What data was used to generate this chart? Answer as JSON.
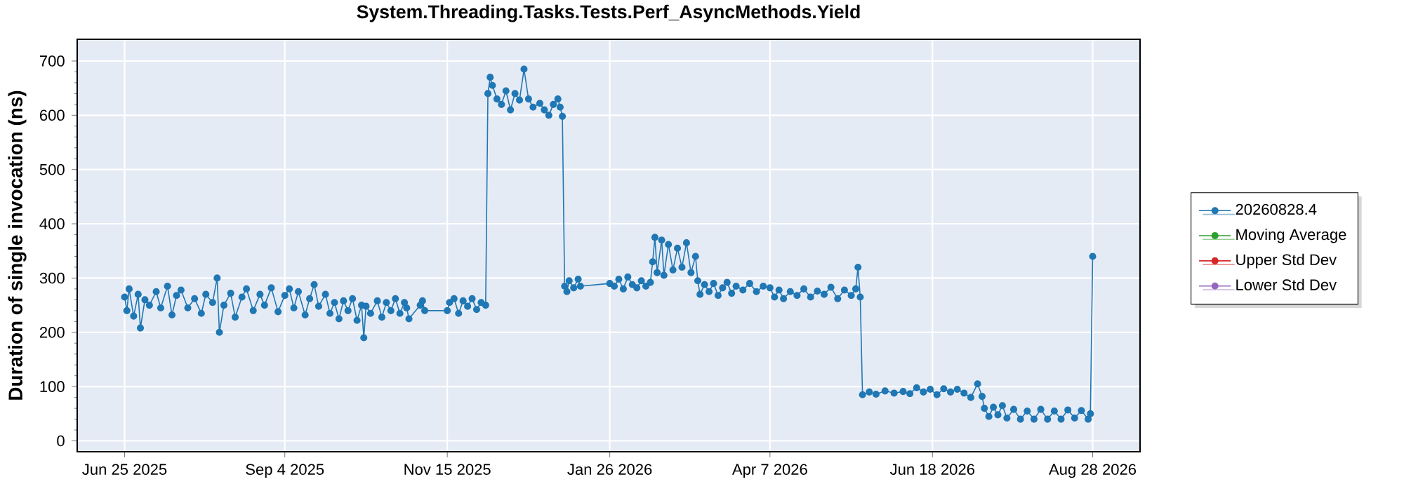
{
  "chart_data": {
    "type": "line",
    "title": "System.Threading.Tasks.Tests.Perf_AsyncMethods.Yield",
    "ylabel": "Duration of single invocation (ns)",
    "x": [
      "2025-06-25",
      "2025-06-26",
      "2025-06-27",
      "2025-06-29",
      "2025-07-01",
      "2025-07-02",
      "2025-07-04",
      "2025-07-06",
      "2025-07-09",
      "2025-07-11",
      "2025-07-14",
      "2025-07-16",
      "2025-07-18",
      "2025-07-20",
      "2025-07-23",
      "2025-07-26",
      "2025-07-29",
      "2025-07-31",
      "2025-08-03",
      "2025-08-05",
      "2025-08-06",
      "2025-08-08",
      "2025-08-11",
      "2025-08-13",
      "2025-08-16",
      "2025-08-18",
      "2025-08-21",
      "2025-08-24",
      "2025-08-26",
      "2025-08-29",
      "2025-09-01",
      "2025-09-04",
      "2025-09-06",
      "2025-09-08",
      "2025-09-10",
      "2025-09-13",
      "2025-09-15",
      "2025-09-17",
      "2025-09-19",
      "2025-09-22",
      "2025-09-24",
      "2025-09-26",
      "2025-09-28",
      "2025-09-30",
      "2025-10-02",
      "2025-10-04",
      "2025-10-06",
      "2025-10-08",
      "2025-10-09",
      "2025-10-10",
      "2025-10-12",
      "2025-10-15",
      "2025-10-17",
      "2025-10-19",
      "2025-10-21",
      "2025-10-23",
      "2025-10-25",
      "2025-10-27",
      "2025-10-28",
      "2025-10-29",
      "2025-11-03",
      "2025-11-04",
      "2025-11-05",
      "2025-11-15",
      "2025-11-16",
      "2025-11-18",
      "2025-11-20",
      "2025-11-22",
      "2025-11-24",
      "2025-11-26",
      "2025-11-28",
      "2025-11-30",
      "2025-12-02",
      "2025-12-03",
      "2025-12-04",
      "2025-12-05",
      "2025-12-07",
      "2025-12-09",
      "2025-12-11",
      "2025-12-13",
      "2025-12-15",
      "2025-12-17",
      "2025-12-19",
      "2025-12-21",
      "2025-12-23",
      "2025-12-26",
      "2025-12-28",
      "2025-12-30",
      "2026-01-01",
      "2026-01-03",
      "2026-01-04",
      "2026-01-05",
      "2026-01-06",
      "2026-01-07",
      "2026-01-08",
      "2026-01-10",
      "2026-01-12",
      "2026-01-13",
      "2026-01-26",
      "2026-01-28",
      "2026-01-30",
      "2026-02-01",
      "2026-02-03",
      "2026-02-05",
      "2026-02-07",
      "2026-02-09",
      "2026-02-11",
      "2026-02-13",
      "2026-02-14",
      "2026-02-15",
      "2026-02-16",
      "2026-02-18",
      "2026-02-19",
      "2026-02-21",
      "2026-02-23",
      "2026-02-25",
      "2026-02-27",
      "2026-03-01",
      "2026-03-03",
      "2026-03-05",
      "2026-03-06",
      "2026-03-07",
      "2026-03-09",
      "2026-03-11",
      "2026-03-13",
      "2026-03-15",
      "2026-03-17",
      "2026-03-19",
      "2026-03-21",
      "2026-03-23",
      "2026-03-26",
      "2026-03-29",
      "2026-04-01",
      "2026-04-04",
      "2026-04-07",
      "2026-04-09",
      "2026-04-11",
      "2026-04-13",
      "2026-04-16",
      "2026-04-19",
      "2026-04-22",
      "2026-04-25",
      "2026-04-28",
      "2026-05-01",
      "2026-05-04",
      "2026-05-07",
      "2026-05-10",
      "2026-05-13",
      "2026-05-15",
      "2026-05-16",
      "2026-05-17",
      "2026-05-18",
      "2026-05-21",
      "2026-05-24",
      "2026-05-28",
      "2026-06-01",
      "2026-06-05",
      "2026-06-08",
      "2026-06-11",
      "2026-06-14",
      "2026-06-17",
      "2026-06-20",
      "2026-06-23",
      "2026-06-26",
      "2026-06-29",
      "2026-07-02",
      "2026-07-05",
      "2026-07-08",
      "2026-07-10",
      "2026-07-11",
      "2026-07-13",
      "2026-07-15",
      "2026-07-17",
      "2026-07-19",
      "2026-07-21",
      "2026-07-24",
      "2026-07-27",
      "2026-07-30",
      "2026-08-02",
      "2026-08-05",
      "2026-08-08",
      "2026-08-11",
      "2026-08-14",
      "2026-08-17",
      "2026-08-20",
      "2026-08-23",
      "2026-08-26",
      "2026-08-27",
      "2026-08-28"
    ],
    "series": [
      {
        "name": "20260828.4",
        "color": "#1f77b4",
        "values": [
          265,
          240,
          280,
          230,
          270,
          208,
          260,
          250,
          275,
          245,
          285,
          232,
          268,
          278,
          245,
          262,
          235,
          270,
          255,
          300,
          200,
          250,
          272,
          228,
          265,
          280,
          240,
          270,
          250,
          282,
          238,
          268,
          280,
          245,
          275,
          232,
          262,
          288,
          248,
          270,
          235,
          255,
          225,
          258,
          240,
          262,
          222,
          250,
          190,
          248,
          235,
          258,
          228,
          255,
          240,
          262,
          235,
          255,
          245,
          225,
          250,
          258,
          240,
          240,
          255,
          262,
          235,
          258,
          248,
          262,
          242,
          255,
          250,
          640,
          670,
          655,
          630,
          620,
          645,
          610,
          640,
          628,
          685,
          630,
          615,
          622,
          610,
          600,
          620,
          630,
          615,
          598,
          285,
          275,
          295,
          282,
          298,
          285,
          290,
          285,
          298,
          280,
          302,
          288,
          282,
          295,
          285,
          292,
          330,
          375,
          310,
          370,
          305,
          362,
          315,
          355,
          320,
          365,
          310,
          340,
          295,
          270,
          288,
          275,
          290,
          268,
          282,
          292,
          272,
          285,
          278,
          290,
          275,
          285,
          282,
          265,
          278,
          262,
          275,
          268,
          280,
          265,
          276,
          270,
          283,
          262,
          278,
          268,
          280,
          320,
          265,
          85,
          90,
          86,
          92,
          88,
          91,
          87,
          98,
          90,
          95,
          85,
          96,
          90,
          95,
          88,
          80,
          105,
          82,
          60,
          45,
          62,
          48,
          65,
          42,
          58,
          40,
          55,
          40,
          58,
          40,
          55,
          40,
          57,
          42,
          56,
          40,
          50,
          340
        ]
      },
      {
        "name": "Moving Average",
        "color": "#2ca02c",
        "values": [
          null,
          null,
          null,
          null,
          null,
          null,
          null,
          null,
          null,
          null,
          null,
          null,
          null,
          null,
          null,
          null,
          null,
          null,
          null,
          null,
          null,
          null,
          null,
          null,
          null,
          null,
          null,
          null,
          null,
          null,
          null,
          null,
          null,
          null,
          null,
          null,
          null,
          null,
          null,
          null,
          null,
          null,
          null,
          null,
          null,
          null,
          null,
          null,
          null,
          null,
          null,
          null,
          null,
          null,
          null,
          null,
          null,
          null,
          null,
          null,
          null,
          null,
          null,
          null,
          null,
          null,
          null,
          null,
          null,
          null,
          null,
          null,
          null,
          null,
          null,
          null,
          null,
          null,
          null,
          null,
          null,
          null,
          null,
          null,
          null,
          null,
          null,
          null,
          null,
          null,
          null,
          null,
          null,
          null,
          null,
          null,
          null,
          null,
          null,
          null,
          null,
          null,
          null,
          null,
          null,
          null,
          null,
          null,
          null,
          null,
          null,
          null,
          null,
          null,
          null,
          null,
          null,
          null,
          null,
          null,
          null,
          null,
          null,
          null,
          null,
          null,
          null,
          null,
          null,
          null,
          null,
          null,
          null,
          null,
          null,
          null,
          null,
          null,
          null,
          null,
          null,
          null,
          null,
          null,
          null,
          null,
          null,
          null,
          null,
          null,
          null,
          null,
          null,
          null,
          null,
          null,
          null,
          null,
          null,
          null,
          null,
          null,
          null,
          null,
          null,
          null,
          null,
          null,
          null,
          null,
          null,
          null,
          null,
          null,
          null,
          null,
          null,
          null,
          null,
          null,
          null,
          null,
          null,
          null,
          null,
          null,
          null,
          null,
          null
        ]
      },
      {
        "name": "Upper Std Dev",
        "color": "#d62728",
        "values": [
          null,
          null,
          null,
          null,
          null,
          null,
          null,
          null,
          null,
          null,
          null,
          null,
          null,
          null,
          null,
          null,
          null,
          null,
          null,
          null,
          null,
          null,
          null,
          null,
          null,
          null,
          null,
          null,
          null,
          null,
          null,
          null,
          null,
          null,
          null,
          null,
          null,
          null,
          null,
          null,
          null,
          null,
          null,
          null,
          null,
          null,
          null,
          null,
          null,
          null,
          null,
          null,
          null,
          null,
          null,
          null,
          null,
          null,
          null,
          null,
          null,
          null,
          null,
          null,
          null,
          null,
          null,
          null,
          null,
          null,
          null,
          null,
          null,
          null,
          null,
          null,
          null,
          null,
          null,
          null,
          null,
          null,
          null,
          null,
          null,
          null,
          null,
          null,
          null,
          null,
          null,
          null,
          null,
          null,
          null,
          null,
          null,
          null,
          null,
          null,
          null,
          null,
          null,
          null,
          null,
          null,
          null,
          null,
          null,
          null,
          null,
          null,
          null,
          null,
          null,
          null,
          null,
          null,
          null,
          null,
          null,
          null,
          null,
          null,
          null,
          null,
          null,
          null,
          null,
          null,
          null,
          null,
          null,
          null,
          null,
          null,
          null,
          null,
          null,
          null,
          null,
          null,
          null,
          null,
          null,
          null,
          null,
          null,
          null,
          null,
          null,
          null,
          null,
          null,
          null,
          null,
          null,
          null,
          null,
          null,
          null,
          null,
          null,
          null,
          null,
          null,
          null,
          null,
          null,
          null,
          null,
          null,
          null,
          null,
          null,
          null,
          null,
          null,
          null,
          null,
          null,
          null,
          null,
          null,
          null,
          null,
          null,
          null,
          null
        ]
      },
      {
        "name": "Lower Std Dev",
        "color": "#9467bd",
        "values": [
          null,
          null,
          null,
          null,
          null,
          null,
          null,
          null,
          null,
          null,
          null,
          null,
          null,
          null,
          null,
          null,
          null,
          null,
          null,
          null,
          null,
          null,
          null,
          null,
          null,
          null,
          null,
          null,
          null,
          null,
          null,
          null,
          null,
          null,
          null,
          null,
          null,
          null,
          null,
          null,
          null,
          null,
          null,
          null,
          null,
          null,
          null,
          null,
          null,
          null,
          null,
          null,
          null,
          null,
          null,
          null,
          null,
          null,
          null,
          null,
          null,
          null,
          null,
          null,
          null,
          null,
          null,
          null,
          null,
          null,
          null,
          null,
          null,
          null,
          null,
          null,
          null,
          null,
          null,
          null,
          null,
          null,
          null,
          null,
          null,
          null,
          null,
          null,
          null,
          null,
          null,
          null,
          null,
          null,
          null,
          null,
          null,
          null,
          null,
          null,
          null,
          null,
          null,
          null,
          null,
          null,
          null,
          null,
          null,
          null,
          null,
          null,
          null,
          null,
          null,
          null,
          null,
          null,
          null,
          null,
          null,
          null,
          null,
          null,
          null,
          null,
          null,
          null,
          null,
          null,
          null,
          null,
          null,
          null,
          null,
          null,
          null,
          null,
          null,
          null,
          null,
          null,
          null,
          null,
          null,
          null,
          null,
          null,
          null,
          null,
          null,
          null,
          null,
          null,
          null,
          null,
          null,
          null,
          null,
          null,
          null,
          null,
          null,
          null,
          null,
          null,
          null,
          null,
          null,
          null,
          null,
          null,
          null,
          null,
          null,
          null,
          null,
          null,
          null,
          null,
          null,
          null,
          null,
          null,
          null,
          null,
          null,
          null,
          null
        ]
      }
    ],
    "xlim": [
      "2025-06-04",
      "2026-09-18"
    ],
    "xticks": [
      {
        "value": "2025-06-25",
        "label": "Jun 25 2025"
      },
      {
        "value": "2025-09-04",
        "label": "Sep 4 2025"
      },
      {
        "value": "2025-11-15",
        "label": "Nov 15 2025"
      },
      {
        "value": "2026-01-26",
        "label": "Jan 26 2026"
      },
      {
        "value": "2026-04-07",
        "label": "Apr 7 2026"
      },
      {
        "value": "2026-06-18",
        "label": "Jun 18 2026"
      },
      {
        "value": "2026-08-28",
        "label": "Aug 28 2026"
      }
    ],
    "ylim": [
      -20,
      740
    ],
    "yticks": [
      0,
      100,
      200,
      300,
      400,
      500,
      600,
      700
    ],
    "grid": true,
    "legend": "right",
    "marker": "circle",
    "line_style": "solid"
  }
}
